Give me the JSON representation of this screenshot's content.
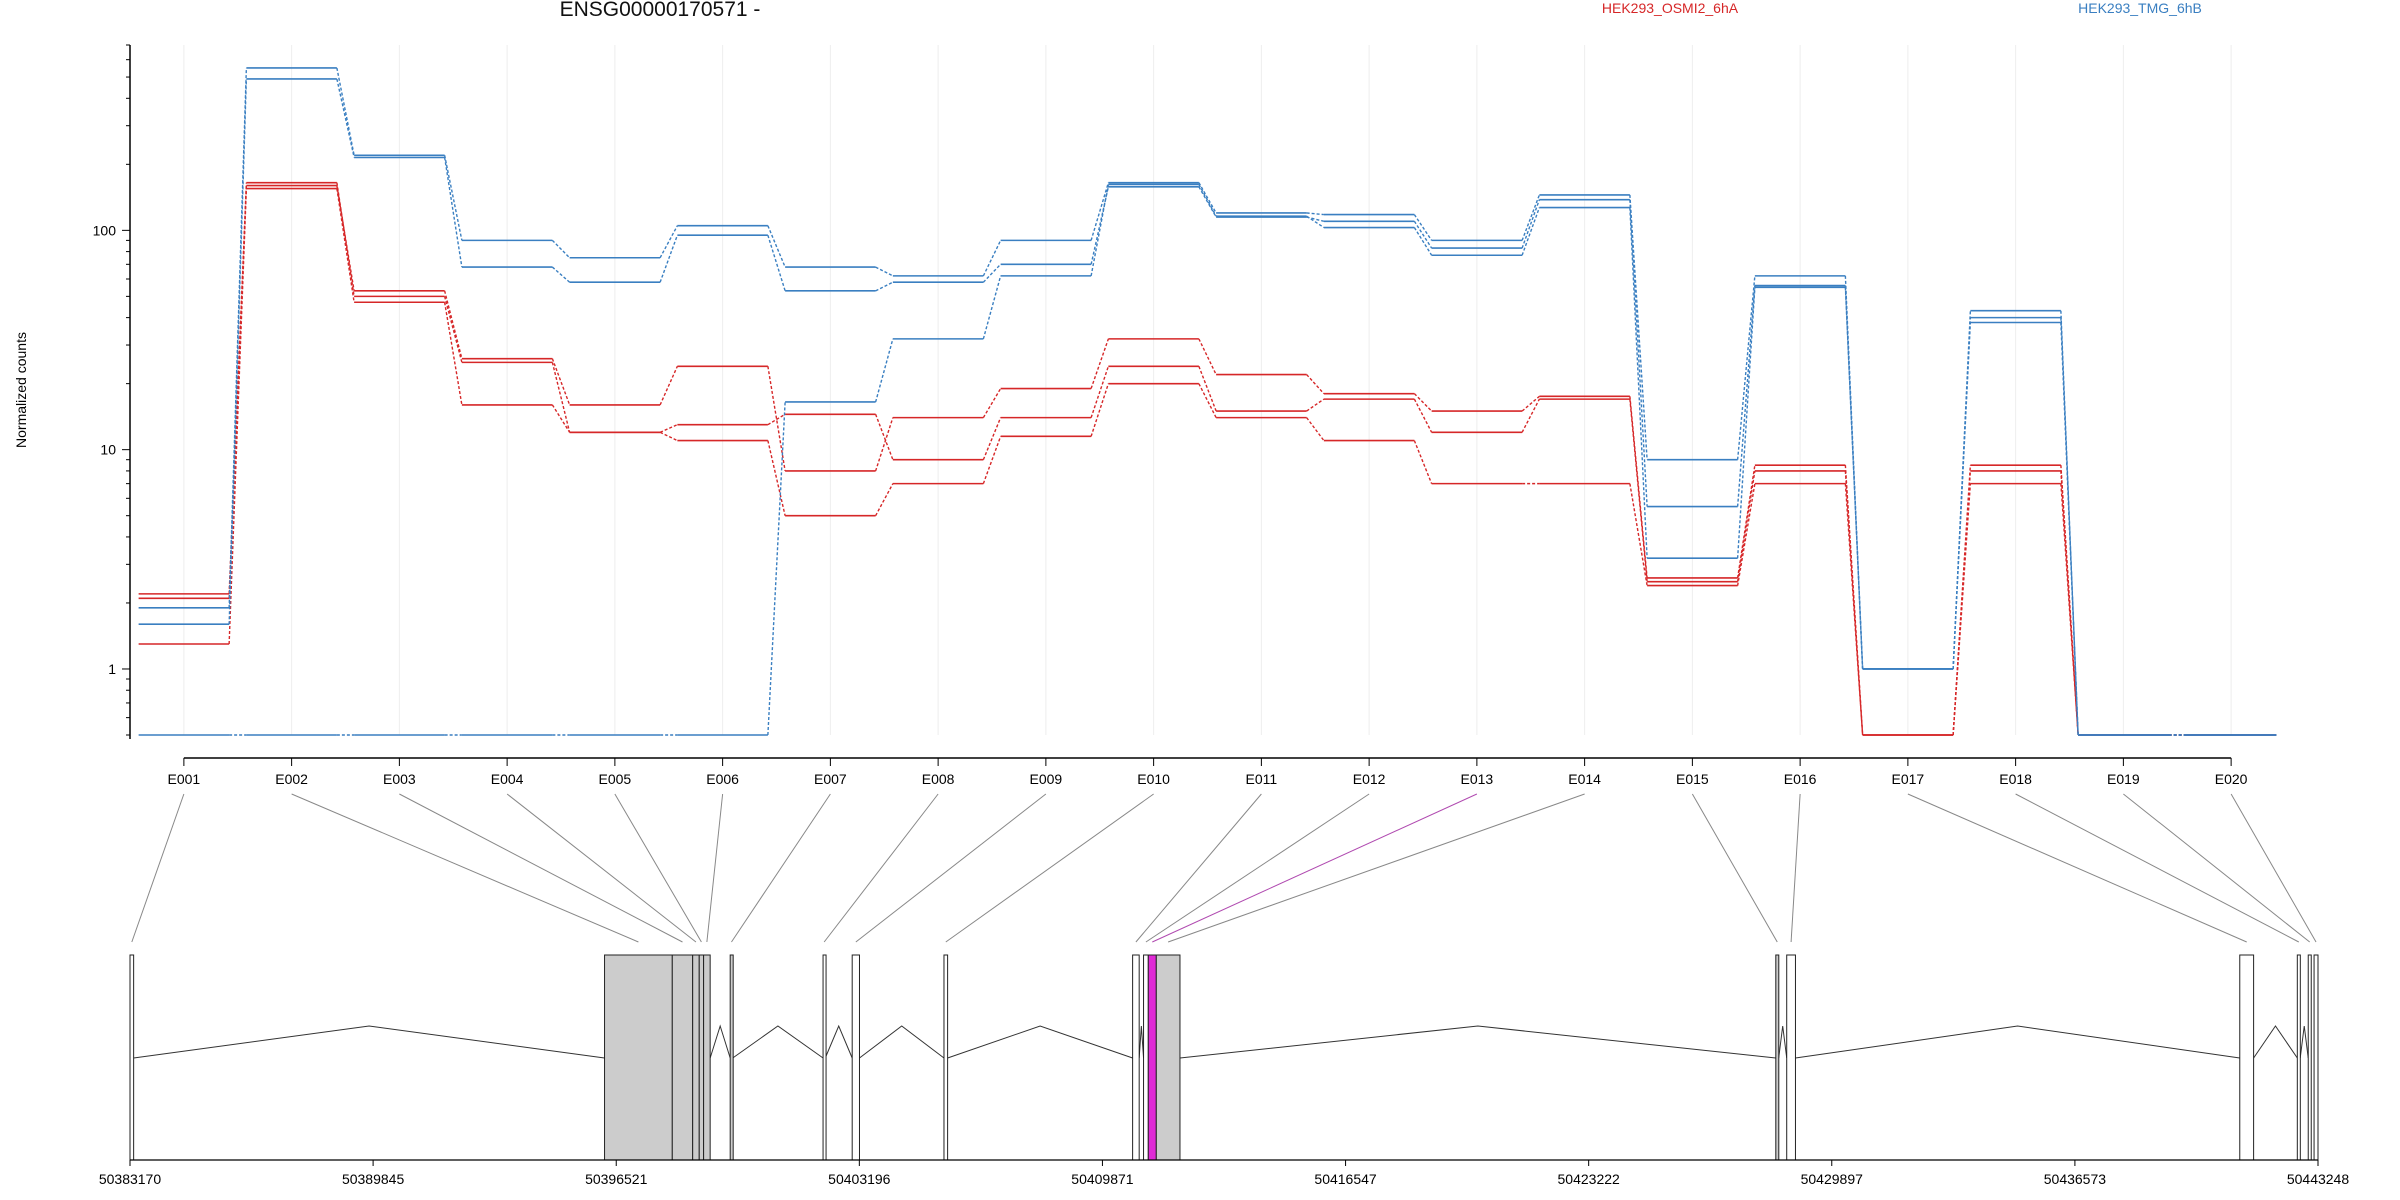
{
  "chart_data": {
    "type": "line",
    "title": "ENSG00000170571 -",
    "ylabel": "Normalized counts",
    "yscale": "log",
    "ylim": [
      0.5,
      700
    ],
    "yticks": [
      1,
      10,
      100
    ],
    "grid": true,
    "legend_placement": "top",
    "categories": [
      "E001",
      "E002",
      "E003",
      "E004",
      "E005",
      "E006",
      "E007",
      "E008",
      "E009",
      "E010",
      "E011",
      "E012",
      "E013",
      "E014",
      "E015",
      "E016",
      "E017",
      "E018",
      "E019",
      "E020"
    ],
    "groups": [
      {
        "name": "HEK293_OSMI2_6hA",
        "color": "#d62728"
      },
      {
        "name": "HEK293_TMG_6hB",
        "color": "#3a7fc1"
      }
    ],
    "series": [
      {
        "group": 0,
        "values": [
          2.2,
          160,
          53,
          26,
          16,
          24,
          8,
          14,
          19,
          32,
          22,
          18,
          15,
          17.5,
          2.6,
          8.5,
          0.5,
          8.5,
          0.5,
          0.5
        ]
      },
      {
        "group": 0,
        "values": [
          2.1,
          165,
          50,
          25,
          12,
          13,
          14.5,
          9,
          14,
          24,
          15,
          17,
          12,
          17,
          2.5,
          8,
          0.5,
          8,
          0.5,
          0.5
        ]
      },
      {
        "group": 0,
        "values": [
          1.3,
          155,
          47,
          16,
          12,
          11,
          5,
          7,
          11.5,
          20,
          14,
          11,
          7,
          7,
          2.4,
          7,
          0.5,
          7,
          0.5,
          0.5
        ]
      },
      {
        "group": 1,
        "values": [
          1.9,
          550,
          220,
          90,
          75,
          105,
          68,
          62,
          90,
          165,
          120,
          118,
          90,
          145,
          9,
          62,
          1,
          43,
          0.5,
          0.5
        ]
      },
      {
        "group": 1,
        "values": [
          1.6,
          490,
          215,
          68,
          58,
          95,
          53,
          58,
          70,
          158,
          115,
          110,
          83,
          138,
          5.5,
          56,
          1,
          40,
          0.5,
          0.5
        ]
      },
      {
        "group": 1,
        "values": [
          0.5,
          0.5,
          0.5,
          0.5,
          0.5,
          0.5,
          16.5,
          32,
          62,
          162,
          116,
          103,
          77,
          127,
          3.2,
          55,
          1,
          38,
          0.5,
          0.5
        ]
      }
    ],
    "genome_axis": {
      "start": 50383170,
      "end": 50443248,
      "ticks": [
        50383170,
        50389845,
        50396521,
        50403196,
        50409871,
        50416547,
        50423222,
        50429897,
        50436573,
        50443248
      ],
      "tick_labels": [
        "50383170",
        "50389845",
        "50396521",
        "50403196",
        "50409871",
        "50416547",
        "50423222",
        "50429897",
        "50436573",
        "50443248"
      ]
    },
    "exons": [
      {
        "id": "E001",
        "start": 50383170,
        "end": 50383270
      },
      {
        "id": "E002",
        "start": 50396200,
        "end": 50398060
      },
      {
        "id": "E003",
        "start": 50398060,
        "end": 50398620
      },
      {
        "id": "E004",
        "start": 50398620,
        "end": 50398800
      },
      {
        "id": "E005",
        "start": 50398800,
        "end": 50398920
      },
      {
        "id": "E006",
        "start": 50398920,
        "end": 50399100
      },
      {
        "id": "E007",
        "start": 50399650,
        "end": 50399720
      },
      {
        "id": "E008",
        "start": 50402200,
        "end": 50402260
      },
      {
        "id": "E009",
        "start": 50403000,
        "end": 50403200
      },
      {
        "id": "E010",
        "start": 50405520,
        "end": 50405620
      },
      {
        "id": "E011",
        "start": 50410700,
        "end": 50410880
      },
      {
        "id": "E012",
        "start": 50411000,
        "end": 50411130
      },
      {
        "id": "E013",
        "start": 50411130,
        "end": 50411350,
        "highlight": "#e02ad6"
      },
      {
        "id": "E014",
        "start": 50411350,
        "end": 50412000
      },
      {
        "id": "E015",
        "start": 50428360,
        "end": 50428440
      },
      {
        "id": "E016",
        "start": 50428660,
        "end": 50428900
      },
      {
        "id": "E017",
        "start": 50441100,
        "end": 50441480
      },
      {
        "id": "E018",
        "start": 50442680,
        "end": 50442760
      },
      {
        "id": "E019",
        "start": 50442980,
        "end": 50443060
      },
      {
        "id": "E020",
        "start": 50443140,
        "end": 50443248
      }
    ],
    "exon_linked": [
      1,
      2,
      3,
      4,
      5,
      6,
      13,
      14
    ]
  }
}
